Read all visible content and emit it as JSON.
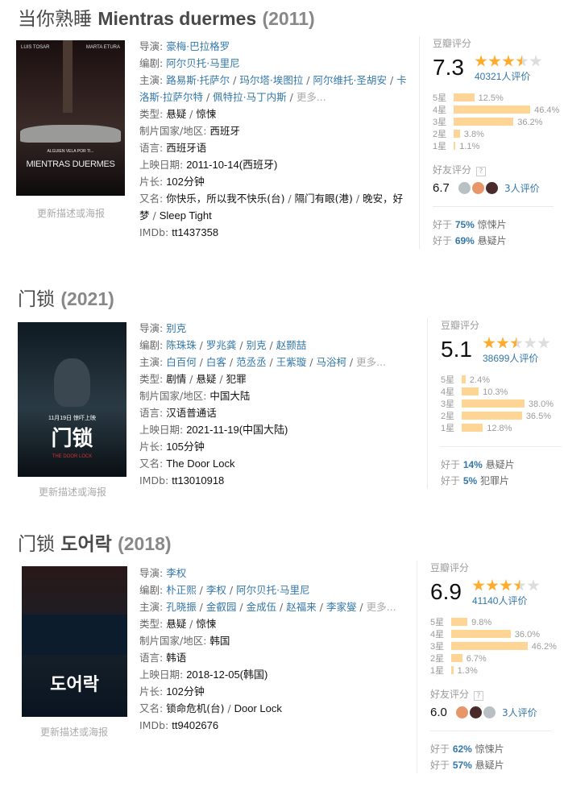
{
  "movies": [
    {
      "title_cn": "当你熟睡",
      "title_en": "Mientras duermes",
      "year": "(2011)",
      "poster": {
        "top_left": "LUIS TOSAR",
        "top_right": "MARTA ETURA",
        "tagline": "ALGUIEN VELA POR TI...",
        "title": "MIENTRAS DUERMES",
        "colors": [
          "#1a0f0f",
          "#3a2a28",
          "#0d0b0b"
        ]
      },
      "update_caption": "更新描述或海报",
      "info": [
        {
          "label": "导演: ",
          "items": [
            "豪梅·巴拉格罗"
          ],
          "style": "link"
        },
        {
          "label": "编剧: ",
          "items": [
            "阿尔贝托·马里尼"
          ],
          "style": "link"
        },
        {
          "label": "主演: ",
          "items": [
            "路易斯·托萨尔",
            "玛尔塔·埃图拉",
            "阿尔维托·圣胡安",
            "卡洛斯·拉萨尔特",
            "佩特拉·马丁内斯"
          ],
          "style": "link",
          "more": "更多..."
        },
        {
          "label": "类型: ",
          "items": [
            "悬疑",
            "惊悚"
          ]
        },
        {
          "label": "制片国家/地区: ",
          "items": [
            "西班牙"
          ]
        },
        {
          "label": "语言: ",
          "items": [
            "西班牙语"
          ]
        },
        {
          "label": "上映日期: ",
          "items": [
            "2011-10-14(西班牙)"
          ]
        },
        {
          "label": "片长: ",
          "items": [
            "102分钟"
          ]
        },
        {
          "label": "又名: ",
          "items": [
            "你快乐，所以我不快乐(台)",
            "隔门有眼(港)",
            "晚安，好梦",
            "Sleep Tight"
          ]
        },
        {
          "label": "IMDb: ",
          "items": [
            "tt1437358"
          ]
        }
      ],
      "rating": {
        "header": "豆瓣评分",
        "score": "7.3",
        "stars": 3.5,
        "votes": "40321人评价",
        "histogram": [
          {
            "label": "5星",
            "pct": 12.5,
            "text": "12.5%"
          },
          {
            "label": "4星",
            "pct": 46.4,
            "text": "46.4%"
          },
          {
            "label": "3星",
            "pct": 36.2,
            "text": "36.2%"
          },
          {
            "label": "2星",
            "pct": 3.8,
            "text": "3.8%"
          },
          {
            "label": "1星",
            "pct": 1.1,
            "text": "1.1%"
          }
        ],
        "friends": {
          "header": "好友评分",
          "help": "?",
          "score": "6.7",
          "avatars": [
            "#b9c0c4",
            "#e9956a",
            "#4a2a2a"
          ],
          "count": "3人评价"
        },
        "better_than": [
          {
            "prefix": "好于 ",
            "pct": "75%",
            "genre": " 惊悚片"
          },
          {
            "prefix": "好于 ",
            "pct": "69%",
            "genre": " 悬疑片"
          }
        ]
      }
    },
    {
      "title_cn": "门锁",
      "title_en": "",
      "year": "(2021)",
      "poster": {
        "top_left": "",
        "top_right": "",
        "tagline": "11月19日 惊吓上映",
        "title": "门锁",
        "sub": "THE DOOR LOCK",
        "colors": [
          "#0f1a22",
          "#2a3a44",
          "#0a0f14"
        ]
      },
      "update_caption": "更新描述或海报",
      "info": [
        {
          "label": "导演: ",
          "items": [
            "别克"
          ],
          "style": "link"
        },
        {
          "label": "编剧: ",
          "items": [
            "陈珠珠",
            "罗兆龚",
            "别克",
            "赵颢喆"
          ],
          "style": "link"
        },
        {
          "label": "主演: ",
          "items": [
            "白百何",
            "白客",
            "范丞丞",
            "王紫璇",
            "马浴柯"
          ],
          "style": "link",
          "more": "更多..."
        },
        {
          "label": "类型: ",
          "items": [
            "剧情",
            "悬疑",
            "犯罪"
          ]
        },
        {
          "label": "制片国家/地区: ",
          "items": [
            "中国大陆"
          ]
        },
        {
          "label": "语言: ",
          "items": [
            "汉语普通话"
          ]
        },
        {
          "label": "上映日期: ",
          "items": [
            "2021-11-19(中国大陆)"
          ]
        },
        {
          "label": "片长: ",
          "items": [
            "105分钟"
          ]
        },
        {
          "label": "又名: ",
          "items": [
            "The Door Lock"
          ]
        },
        {
          "label": "IMDb: ",
          "items": [
            "tt13010918"
          ]
        }
      ],
      "rating": {
        "header": "豆瓣评分",
        "score": "5.1",
        "stars": 2.5,
        "votes": "38699人评价",
        "histogram": [
          {
            "label": "5星",
            "pct": 2.4,
            "text": "2.4%"
          },
          {
            "label": "4星",
            "pct": 10.3,
            "text": "10.3%"
          },
          {
            "label": "3星",
            "pct": 38.0,
            "text": "38.0%"
          },
          {
            "label": "2星",
            "pct": 36.5,
            "text": "36.5%"
          },
          {
            "label": "1星",
            "pct": 12.8,
            "text": "12.8%"
          }
        ],
        "better_than": [
          {
            "prefix": "好于 ",
            "pct": "14%",
            "genre": " 悬疑片"
          },
          {
            "prefix": "好于 ",
            "pct": "5%",
            "genre": " 犯罪片"
          }
        ]
      }
    },
    {
      "title_cn": "门锁",
      "title_en": "도어락",
      "year": "(2018)",
      "poster": {
        "top_left": "",
        "top_right": "",
        "tagline": "",
        "title": "도어락",
        "sub": "",
        "colors": [
          "#2a1818",
          "#15202a",
          "#0a1420"
        ]
      },
      "update_caption": "更新描述或海报",
      "info": [
        {
          "label": "导演: ",
          "items": [
            "李权"
          ],
          "style": "link"
        },
        {
          "label": "编剧: ",
          "items": [
            "朴正熙",
            "李权",
            "阿尔贝托·马里尼"
          ],
          "style": "link"
        },
        {
          "label": "主演: ",
          "items": [
            "孔晓振",
            "金叡园",
            "金成伍",
            "赵福来",
            "李家燮"
          ],
          "style": "link",
          "more": "更多..."
        },
        {
          "label": "类型: ",
          "items": [
            "悬疑",
            "惊悚"
          ]
        },
        {
          "label": "制片国家/地区: ",
          "items": [
            "韩国"
          ]
        },
        {
          "label": "语言: ",
          "items": [
            "韩语"
          ]
        },
        {
          "label": "上映日期: ",
          "items": [
            "2018-12-05(韩国)"
          ]
        },
        {
          "label": "片长: ",
          "items": [
            "102分钟"
          ]
        },
        {
          "label": "又名: ",
          "items": [
            "锁命危机(台)",
            "Door Lock"
          ]
        },
        {
          "label": "IMDb: ",
          "items": [
            "tt9402676"
          ]
        }
      ],
      "rating": {
        "header": "豆瓣评分",
        "score": "6.9",
        "stars": 3.5,
        "votes": "41140人评价",
        "histogram": [
          {
            "label": "5星",
            "pct": 9.8,
            "text": "9.8%"
          },
          {
            "label": "4星",
            "pct": 36.0,
            "text": "36.0%"
          },
          {
            "label": "3星",
            "pct": 46.2,
            "text": "46.2%"
          },
          {
            "label": "2星",
            "pct": 6.7,
            "text": "6.7%"
          },
          {
            "label": "1星",
            "pct": 1.3,
            "text": "1.3%"
          }
        ],
        "friends": {
          "header": "好友评分",
          "help": "?",
          "score": "6.0",
          "avatars": [
            "#e9956a",
            "#4a2a2a",
            "#b9c0c4"
          ],
          "count": "3人评价"
        },
        "better_than": [
          {
            "prefix": "好于 ",
            "pct": "62%",
            "genre": " 惊悚片"
          },
          {
            "prefix": "好于 ",
            "pct": "57%",
            "genre": " 悬疑片"
          }
        ]
      }
    }
  ]
}
